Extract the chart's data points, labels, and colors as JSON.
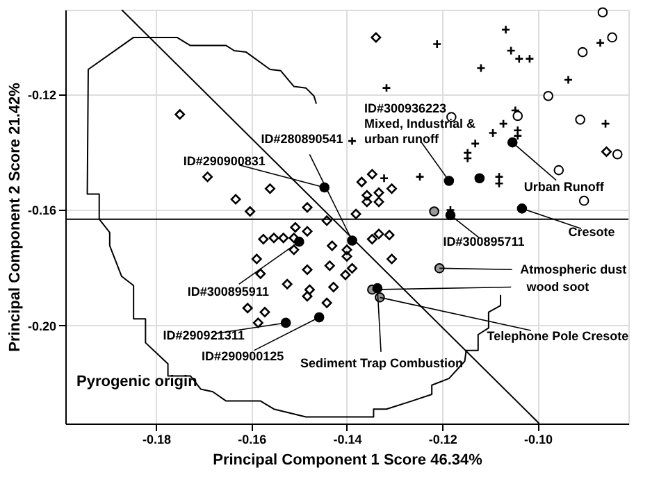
{
  "chart_data": {
    "type": "scatter",
    "xlabel": "Principal Component 1 Score 46.34%",
    "ylabel": "Principal Component 2 Score 21.42%",
    "xlim": [
      -0.199,
      -0.081
    ],
    "ylim": [
      -0.234,
      -0.0906
    ],
    "xticks": [
      -0.18,
      -0.16,
      -0.14,
      -0.12,
      {
        "value": -0.1,
        "label": "-0.10"
      }
    ],
    "yticks": [
      {
        "value": -0.2,
        "label": "-0.20"
      },
      -0.16,
      -0.12
    ],
    "grid": true,
    "series": [
      {
        "type": "line",
        "marker": "none",
        "color": "#000000",
        "x": [
          -0.1464,
          -0.1469,
          -0.1486,
          -0.1511,
          -0.1539,
          -0.1561,
          -0.1611,
          -0.1636,
          -0.1653,
          -0.1728,
          -0.1756,
          -0.1847,
          -0.1942,
          -0.1944,
          -0.1919,
          -0.1919,
          -0.1897,
          -0.1897,
          -0.1872,
          -0.1847,
          -0.1847,
          -0.1822,
          -0.1822,
          -0.1775,
          -0.1775,
          -0.1728,
          -0.1706,
          -0.1681,
          -0.1653,
          -0.1581,
          -0.1553,
          -0.1486,
          -0.1344,
          -0.1344,
          -0.1317,
          -0.1264,
          -0.1222,
          -0.1222,
          -0.1186,
          -0.1153,
          -0.115,
          -0.1125,
          -0.1125,
          -0.1103,
          -0.1103,
          -0.1078,
          -0.1078
        ],
        "values": [
          -0.1232,
          -0.1205,
          -0.1177,
          -0.1172,
          -0.1117,
          -0.1113,
          -0.1053,
          -0.1048,
          -0.103,
          -0.103,
          -0.1002,
          -0.1002,
          -0.1113,
          -0.1545,
          -0.1545,
          -0.1632,
          -0.1678,
          -0.1724,
          -0.183,
          -0.1862,
          -0.1977,
          -0.1977,
          -0.206,
          -0.2133,
          -0.2175,
          -0.2175,
          -0.2221,
          -0.223,
          -0.2262,
          -0.2262,
          -0.229,
          -0.2317,
          -0.2317,
          -0.229,
          -0.229,
          -0.2262,
          -0.2239,
          -0.2207,
          -0.2184,
          -0.2124,
          -0.2087,
          -0.2087,
          -0.2032,
          -0.2009,
          -0.1954,
          -0.1931,
          -0.1894
        ]
      },
      {
        "type": "line",
        "marker": "none",
        "color": "#000000",
        "x": [
          -0.1872,
          -0.0997
        ],
        "values": [
          -0.0906,
          -0.234
        ]
      },
      {
        "type": "scatter",
        "marker": "diamond",
        "color": "#000000",
        "x": [
          -0.175,
          -0.1692,
          -0.1633,
          -0.1603,
          -0.1561,
          -0.1483,
          -0.1508,
          -0.1483,
          -0.1339,
          -0.1347,
          -0.1369,
          -0.1306,
          -0.1358,
          -0.1333,
          -0.1358,
          -0.1333,
          -0.1381,
          -0.1442,
          -0.1333,
          -0.1311,
          -0.0856,
          -0.1575,
          -0.1553,
          -0.1533,
          -0.1511,
          -0.1589,
          -0.1581,
          -0.1525,
          -0.1483,
          -0.1478,
          -0.1483,
          -0.1608,
          -0.1572,
          -0.1586,
          -0.1511,
          -0.1431,
          -0.14,
          -0.1347,
          -0.1306,
          -0.14,
          -0.1436,
          -0.1403,
          -0.1389,
          -0.1428,
          -0.1442
        ],
        "values": [
          -0.1269,
          -0.1485,
          -0.1563,
          -0.1605,
          -0.1526,
          -0.1591,
          -0.166,
          -0.1674,
          -0.1002,
          -0.1476,
          -0.1503,
          -0.1526,
          -0.1549,
          -0.154,
          -0.1572,
          -0.1572,
          -0.1614,
          -0.1637,
          -0.1683,
          -0.1687,
          -0.1398,
          -0.1701,
          -0.1697,
          -0.1697,
          -0.1697,
          -0.177,
          -0.1821,
          -0.1857,
          -0.1807,
          -0.1876,
          -0.1899,
          -0.194,
          -0.1954,
          -0.1991,
          -0.1738,
          -0.1724,
          -0.1738,
          -0.1701,
          -0.177,
          -0.1761,
          -0.1793,
          -0.1825,
          -0.1802,
          -0.1867,
          -0.1922
        ]
      },
      {
        "type": "scatter",
        "marker": "cross",
        "color": "#000000",
        "x": [
          -0.1067,
          -0.1211,
          -0.1056,
          -0.1039,
          -0.1017,
          -0.1119,
          -0.1317,
          -0.0936,
          -0.0869,
          -0.0858,
          -0.1047,
          -0.1072,
          -0.1094,
          -0.1131,
          -0.1147,
          -0.1147,
          -0.1042,
          -0.1042,
          -0.1389,
          -0.1247,
          -0.1322,
          -0.1081,
          -0.1081,
          -0.1183
        ],
        "values": [
          -0.0975,
          -0.1025,
          -0.1048,
          -0.1076,
          -0.1076,
          -0.1108,
          -0.1177,
          -0.1149,
          -0.1021,
          -0.1301,
          -0.1255,
          -0.1301,
          -0.1333,
          -0.137,
          -0.1402,
          -0.1421,
          -0.1324,
          -0.1343,
          -0.1361,
          -0.1485,
          -0.149,
          -0.1485,
          -0.1508,
          -0.16
        ]
      },
      {
        "type": "scatter",
        "marker": "circle",
        "color": "#ffffff",
        "x": [
          -0.0864,
          -0.0844,
          -0.0906,
          -0.0978,
          -0.0911,
          -0.1181,
          -0.1042,
          -0.0833,
          -0.0956,
          -0.0903
        ],
        "values": [
          -0.0915,
          -0.1002,
          -0.1053,
          -0.1205,
          -0.1287,
          -0.1278,
          -0.1274,
          -0.1407,
          -0.1462,
          -0.1568
        ]
      },
      {
        "type": "scatter",
        "marker": "circle",
        "color": "#999999",
        "x": [
          -0.1217,
          -0.1206,
          -0.1347,
          -0.1331
        ],
        "values": [
          -0.1605,
          -0.1802,
          -0.1876,
          -0.1903
        ]
      },
      {
        "type": "scatter",
        "marker": "circle",
        "color": "#000000",
        "x": [
          -0.1389,
          -0.1447,
          -0.1186,
          -0.1122,
          -0.1183,
          -0.1053,
          -0.1033,
          -0.1336,
          -0.15,
          -0.1528,
          -0.1458
        ],
        "values": [
          -0.1706,
          -0.1522,
          -0.1499,
          -0.149,
          -0.1618,
          -0.1366,
          -0.1595,
          -0.1871,
          -0.171,
          -0.1991,
          -0.1972
        ]
      }
    ],
    "ref_lines": [
      {
        "axis": "y",
        "value": -0.1632,
        "color": "#000000"
      }
    ],
    "annotations": [
      {
        "text": "ID#280890541",
        "x": -0.1389,
        "y": -0.1706
      },
      {
        "text": "ID#290900831",
        "x": -0.1447,
        "y": -0.1522
      },
      {
        "text": "ID#300936223\nMixed, Industrial &\nurban runoff",
        "x": -0.1186,
        "y": -0.1499
      },
      {
        "text": "ID#300895711",
        "x": -0.1183,
        "y": -0.1618
      },
      {
        "text": "Urban Runoff",
        "x": -0.1053,
        "y": -0.1366
      },
      {
        "text": "Cresote",
        "x": -0.1033,
        "y": -0.1595
      },
      {
        "text": "Atmospheric dust",
        "x": -0.1206,
        "y": -0.1802
      },
      {
        "text": "wood soot",
        "x": -0.1347,
        "y": -0.1876
      },
      {
        "text": "Telephone Pole Cresote",
        "x": -0.1331,
        "y": -0.1903
      },
      {
        "text": "Sediment Trap Combustion",
        "x": -0.1336,
        "y": -0.1871
      },
      {
        "text": "ID#300895911",
        "x": -0.15,
        "y": -0.171
      },
      {
        "text": "ID#290921311",
        "x": -0.1528,
        "y": -0.1991
      },
      {
        "text": "ID#290900125",
        "x": -0.1458,
        "y": -0.1972
      },
      "Pyrogenic origin"
    ]
  }
}
